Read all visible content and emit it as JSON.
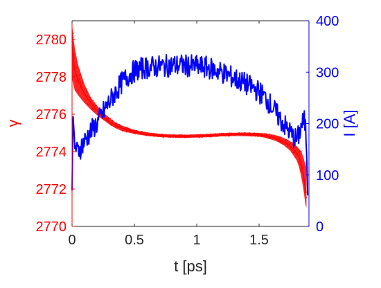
{
  "chart_data": {
    "type": "line",
    "title": "",
    "xlabel": "t [ps]",
    "ylabel_left": "γ",
    "ylabel_right": "I [A]",
    "xlim": [
      0,
      1.9
    ],
    "ylim_left": [
      2770,
      2781
    ],
    "ylim_right": [
      0,
      400
    ],
    "x_ticks": [
      0,
      0.5,
      1,
      1.5
    ],
    "x_tick_labels": [
      "0",
      "0.5",
      "1",
      "1.5"
    ],
    "y_left_ticks": [
      2770,
      2772,
      2774,
      2776,
      2778,
      2780
    ],
    "y_left_tick_labels": [
      "2770",
      "2772",
      "2774",
      "2776",
      "2778",
      "2780"
    ],
    "y_right_ticks": [
      0,
      100,
      200,
      300,
      400
    ],
    "y_right_tick_labels": [
      "0",
      "100",
      "200",
      "300",
      "400"
    ],
    "grid": false,
    "legend": "none",
    "colors": {
      "left": "#ff0000",
      "right": "#0000ff",
      "axes": "#262626"
    },
    "series": [
      {
        "axis": "left",
        "color": "#ff0000",
        "x": [
          0.0,
          0.02,
          0.05,
          0.1,
          0.15,
          0.2,
          0.25,
          0.3,
          0.35,
          0.4,
          0.5,
          0.6,
          0.7,
          0.8,
          0.9,
          1.0,
          1.1,
          1.2,
          1.3,
          1.4,
          1.5,
          1.55,
          1.6,
          1.65,
          1.7,
          1.75,
          1.8,
          1.82,
          1.84,
          1.86,
          1.87,
          1.88
        ],
        "y": [
          2779.6,
          2778.4,
          2777.8,
          2777.1,
          2776.6,
          2776.2,
          2775.9,
          2775.6,
          2775.4,
          2775.25,
          2775.05,
          2774.93,
          2774.86,
          2774.83,
          2774.82,
          2774.83,
          2774.86,
          2774.9,
          2774.92,
          2774.92,
          2774.9,
          2774.85,
          2774.78,
          2774.68,
          2774.52,
          2774.3,
          2773.95,
          2773.7,
          2773.3,
          2772.6,
          2772.0,
          2771.8
        ],
        "upper": [
          2780.8,
          2779.6,
          2778.6,
          2777.6,
          2776.9,
          2776.45,
          2776.1,
          2775.8,
          2775.55,
          2775.4,
          2775.15,
          2775.03,
          2774.95,
          2774.92,
          2774.9,
          2774.92,
          2774.95,
          2774.99,
          2775.01,
          2775.02,
          2775.0,
          2774.97,
          2774.92,
          2774.85,
          2774.72,
          2774.55,
          2774.3,
          2774.15,
          2774.0,
          2773.6,
          2773.3,
          2773.2
        ],
        "lower": [
          2777.9,
          2777.3,
          2777.0,
          2776.6,
          2776.25,
          2775.95,
          2775.7,
          2775.45,
          2775.25,
          2775.1,
          2774.95,
          2774.84,
          2774.78,
          2774.75,
          2774.74,
          2774.75,
          2774.78,
          2774.82,
          2774.84,
          2774.83,
          2774.8,
          2774.74,
          2774.65,
          2774.52,
          2774.33,
          2774.05,
          2773.55,
          2773.2,
          2772.6,
          2771.8,
          2771.2,
          2771.0
        ]
      },
      {
        "axis": "right",
        "color": "#0000ff",
        "x": [
          0.0,
          0.005,
          0.01,
          0.02,
          0.04,
          0.06,
          0.08,
          0.1,
          0.15,
          0.2,
          0.25,
          0.3,
          0.35,
          0.4,
          0.45,
          0.5,
          0.55,
          0.6,
          0.7,
          0.8,
          0.9,
          1.0,
          1.05,
          1.1,
          1.2,
          1.3,
          1.4,
          1.5,
          1.55,
          1.6,
          1.65,
          1.7,
          1.75,
          1.78,
          1.8,
          1.82,
          1.84,
          1.86,
          1.87,
          1.88,
          1.89
        ],
        "y": [
          70,
          160,
          200,
          160,
          145,
          150,
          158,
          165,
          185,
          200,
          222,
          242,
          262,
          280,
          293,
          302,
          307,
          309,
          311,
          313,
          313,
          311,
          310,
          308,
          300,
          288,
          276,
          262,
          250,
          234,
          215,
          198,
          182,
          173,
          168,
          178,
          198,
          205,
          200,
          160,
          60
        ],
        "noise": 22
      }
    ]
  }
}
